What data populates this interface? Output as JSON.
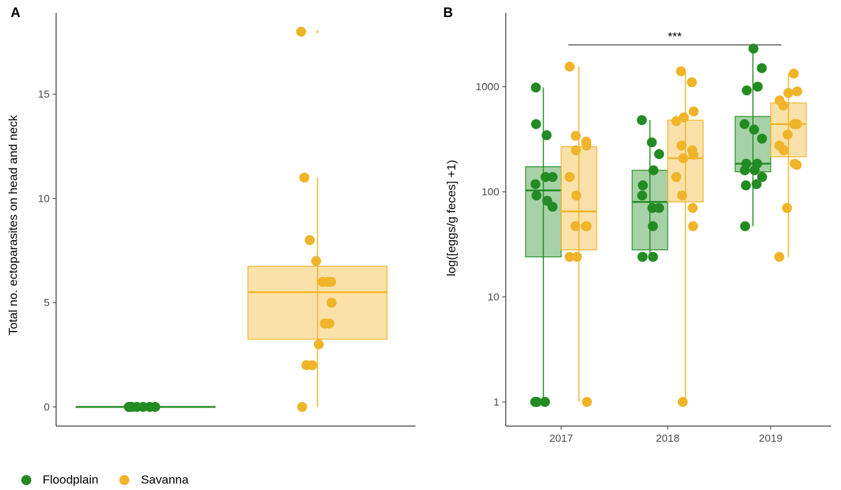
{
  "colors": {
    "Floodplain": "#228b22",
    "Savanna": "#f0b429"
  },
  "legend": {
    "items": [
      {
        "name": "Floodplain"
      },
      {
        "name": "Savanna"
      }
    ]
  },
  "chart_data": [
    {
      "type": "boxplot",
      "panel_label": "A",
      "title": "",
      "xlabel": "",
      "ylabel": "Total no. ectoparasites on head and neck",
      "ylim": [
        -0.9,
        19
      ],
      "yticks": [
        0,
        5,
        10,
        15
      ],
      "ytick_labels": [
        "0",
        "5",
        "10",
        "15"
      ],
      "categories": [
        "Floodplain",
        "Savanna"
      ],
      "boxes": [
        {
          "group": "Floodplain",
          "q1": 0,
          "median": 0,
          "q3": 0,
          "whisker_low": 0,
          "whisker_high": 0,
          "points": [
            0,
            0,
            0,
            0,
            0,
            0,
            0,
            0
          ]
        },
        {
          "group": "Savanna",
          "q1": 3.25,
          "median": 5.5,
          "q3": 6.75,
          "whisker_low": 0,
          "whisker_high": 11,
          "outliers": [
            18
          ],
          "points": [
            18,
            11,
            8,
            7,
            6,
            6,
            6,
            5,
            4,
            4,
            3,
            2,
            2,
            0
          ]
        }
      ]
    },
    {
      "type": "boxplot",
      "panel_label": "B",
      "title": "",
      "xlabel": "",
      "ylabel": "log([eggs/g feces] +1)",
      "yscale": "log",
      "ylim": [
        0.65,
        5000
      ],
      "yticks": [
        1,
        10,
        100,
        1000
      ],
      "ytick_labels": [
        "1",
        "10",
        "100",
        "1000"
      ],
      "categories": [
        "2017",
        "2018",
        "2019"
      ],
      "significance": {
        "from": "2017",
        "to": "2019",
        "label": "***",
        "y": 2500
      },
      "boxes": [
        {
          "year": "2017",
          "group": "Floodplain",
          "q1": 24,
          "median": 103,
          "q3": 173,
          "whisker_low": 1,
          "whisker_high": 980,
          "points": [
            980,
            440,
            345,
            138,
            138,
            118,
            92,
            82,
            72,
            1,
            1,
            1
          ]
        },
        {
          "year": "2017",
          "group": "Savanna",
          "q1": 28,
          "median": 65,
          "q3": 268,
          "whisker_low": 1,
          "whisker_high": 1550,
          "points": [
            1550,
            340,
            300,
            275,
            248,
            138,
            92,
            47,
            47,
            47,
            24,
            24,
            1
          ]
        },
        {
          "year": "2018",
          "group": "Floodplain",
          "q1": 28,
          "median": 80,
          "q3": 160,
          "whisker_low": 24,
          "whisker_high": 480,
          "points": [
            480,
            295,
            228,
            160,
            115,
            92,
            70,
            70,
            47,
            24,
            24,
            24
          ]
        },
        {
          "year": "2018",
          "group": "Savanna",
          "q1": 80,
          "median": 208,
          "q3": 480,
          "whisker_low": 1,
          "whisker_high": 1400,
          "points": [
            1400,
            1100,
            580,
            510,
            470,
            275,
            248,
            225,
            208,
            138,
            92,
            70,
            47,
            1
          ]
        },
        {
          "year": "2019",
          "group": "Floodplain",
          "q1": 155,
          "median": 185,
          "q3": 520,
          "whisker_low": 47,
          "whisker_high": 2300,
          "points": [
            2300,
            1500,
            1000,
            920,
            440,
            390,
            320,
            185,
            185,
            160,
            160,
            138,
            118,
            115,
            47
          ]
        },
        {
          "year": "2019",
          "group": "Savanna",
          "q1": 215,
          "median": 440,
          "q3": 700,
          "whisker_low": 24,
          "whisker_high": 1330,
          "points": [
            1330,
            900,
            870,
            740,
            660,
            440,
            440,
            350,
            275,
            248,
            185,
            180,
            70,
            24
          ]
        }
      ]
    }
  ]
}
